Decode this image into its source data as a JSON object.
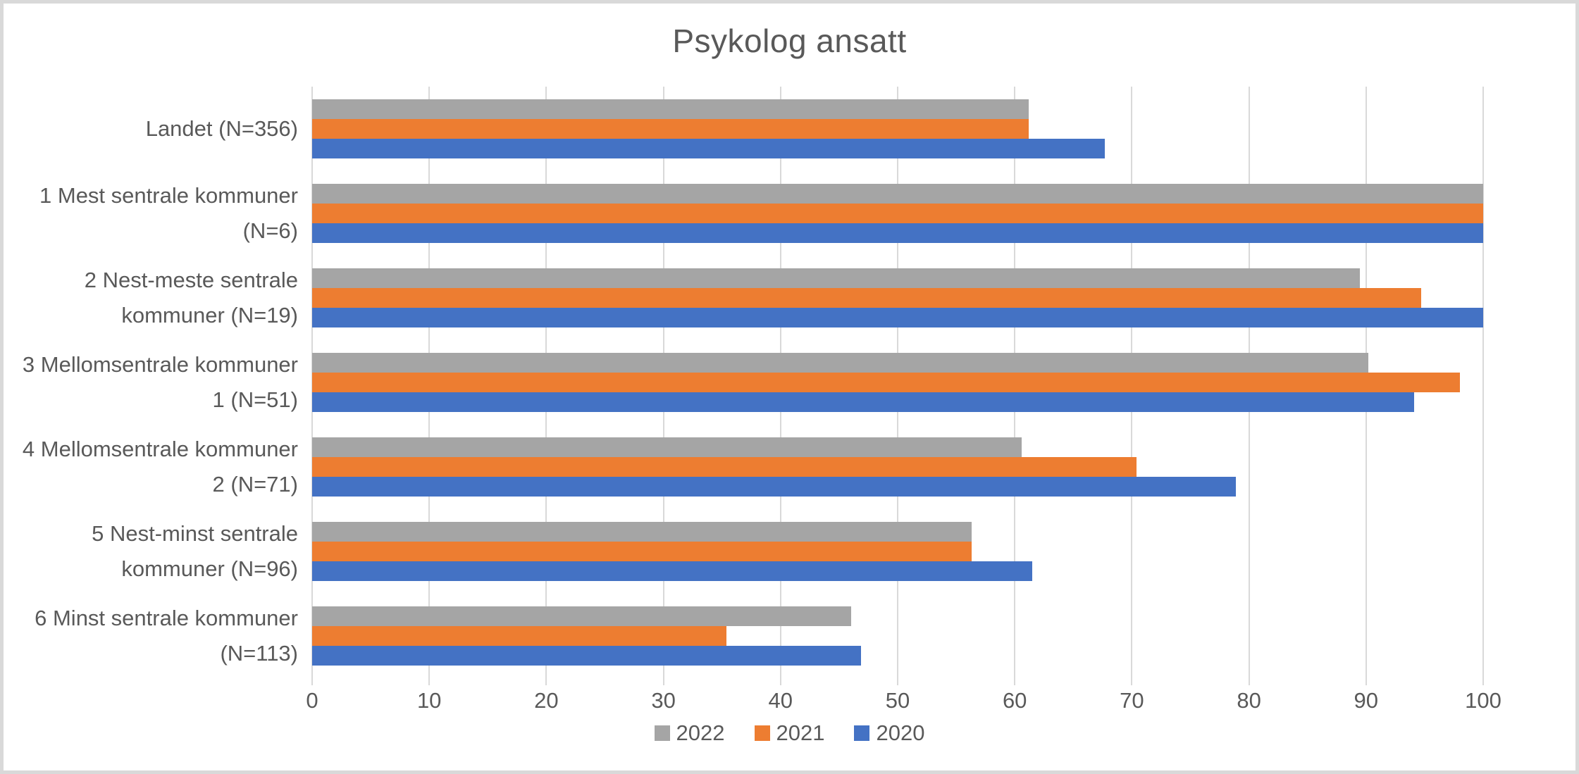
{
  "chart_data": {
    "type": "bar",
    "orientation": "horizontal",
    "title": "Psykolog ansatt",
    "categories": [
      "Landet (N=356)",
      "1 Mest sentrale kommuner (N=6)",
      "2 Nest-meste sentrale kommuner (N=19)",
      "3 Mellomsentrale kommuner 1 (N=51)",
      "4 Mellomsentrale kommuner 2 (N=71)",
      "5 Nest-minst sentrale kommuner (N=96)",
      "6 Minst sentrale kommuner (N=113)"
    ],
    "series": [
      {
        "name": "2022",
        "color": "#A5A5A5",
        "values": [
          61.2,
          100,
          89.5,
          90.2,
          60.6,
          56.3,
          46.0
        ]
      },
      {
        "name": "2021",
        "color": "#ED7D31",
        "values": [
          61.2,
          100,
          94.7,
          98.0,
          70.4,
          56.3,
          35.4
        ]
      },
      {
        "name": "2020",
        "color": "#4472C4",
        "values": [
          67.7,
          100,
          100.0,
          94.1,
          78.9,
          61.5,
          46.9
        ]
      }
    ],
    "bar_order_top_to_bottom": [
      "2022",
      "2021",
      "2020"
    ],
    "xlabel": "",
    "ylabel": "",
    "x_axis": {
      "min": 0,
      "max": 100,
      "tick_interval": 10,
      "tick_labels": [
        "0",
        "10",
        "20",
        "30",
        "40",
        "50",
        "60",
        "70",
        "80",
        "90",
        "100"
      ]
    },
    "grid": true,
    "legend": {
      "position": "bottom-center",
      "entries": [
        "2022",
        "2021",
        "2020"
      ]
    }
  },
  "colors": {
    "background": "#FFFFFF",
    "frame_border": "#D9D9D9",
    "gridline": "#D9D9D9",
    "title_text": "#595959",
    "axis_text": "#595959",
    "series_2022": "#A5A5A5",
    "series_2021": "#ED7D31",
    "series_2020": "#4472C4"
  }
}
